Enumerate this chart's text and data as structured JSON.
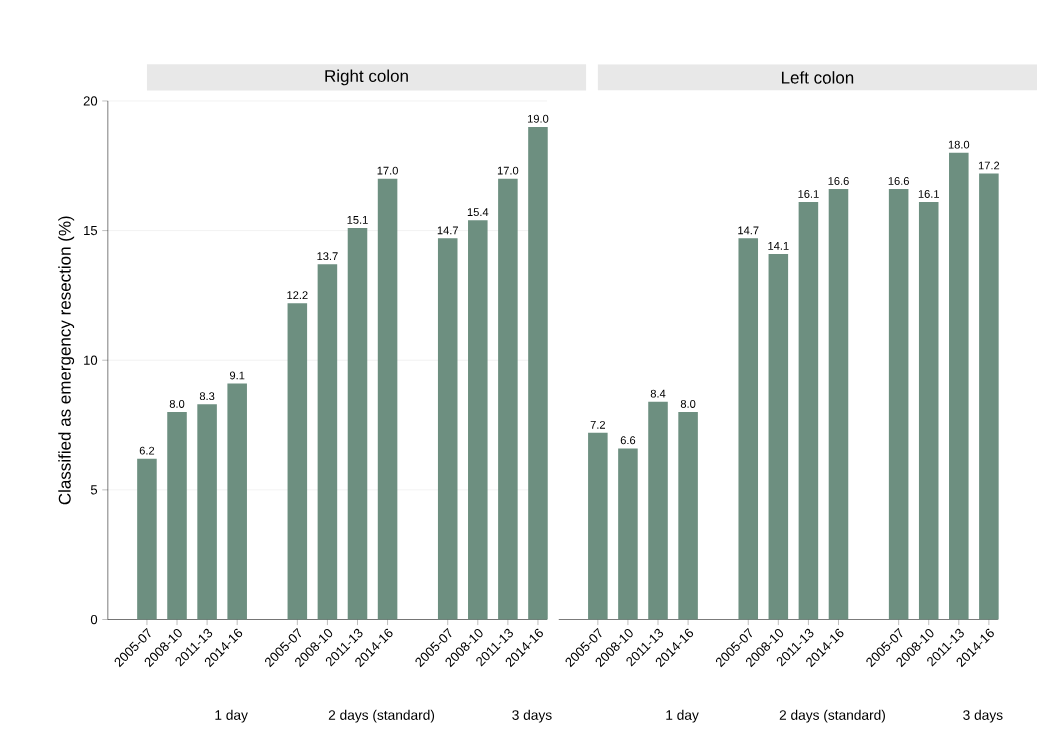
{
  "chart_data": [
    {
      "type": "bar",
      "title": "Right colon",
      "ylabel": "Classified as emergency resection (%)",
      "categories": [
        "2005-07",
        "2008-10",
        "2011-13",
        "2014-16",
        null,
        "2005-07",
        "2008-10",
        "2011-13",
        "2014-16",
        null,
        "2005-07",
        "2008-10",
        "2011-13",
        "2014-16"
      ],
      "values": [
        6.2,
        8.0,
        8.3,
        9.1,
        null,
        12.2,
        13.7,
        15.1,
        17.0,
        null,
        14.7,
        15.4,
        17.0,
        19.0
      ],
      "value_labels": [
        "6.2",
        "8.0",
        "8.3",
        "9.1",
        null,
        "12.2",
        "13.7",
        "15.1",
        "17.0",
        null,
        "14.7",
        "15.4",
        "17.0",
        "19.0"
      ],
      "color": "#6d8f80",
      "ylim": [
        0,
        20
      ],
      "yticks": [
        0,
        5,
        10,
        15,
        20
      ],
      "grid": "y",
      "annotations": [
        "1 day",
        "2 days (standard)",
        "3 days"
      ]
    },
    {
      "type": "bar",
      "title": "Left colon",
      "categories": [
        "2005-07",
        "2008-10",
        "2011-13",
        "2014-16",
        null,
        "2005-07",
        "2008-10",
        "2011-13",
        "2014-16",
        null,
        "2005-07",
        "2008-10",
        "2011-13",
        "2014-16"
      ],
      "values": [
        7.2,
        6.6,
        8.4,
        8.0,
        null,
        14.7,
        14.1,
        16.1,
        16.6,
        null,
        16.6,
        16.1,
        18.0,
        17.2
      ],
      "value_labels": [
        "7.2",
        "6.6",
        "8.4",
        "8.0",
        null,
        "14.7",
        "14.1",
        "16.1",
        "16.6",
        null,
        "16.6",
        "16.1",
        "18.0",
        "17.2"
      ],
      "color": "#6d8f80",
      "ylim": [
        0,
        20
      ],
      "yticks": [
        0,
        5,
        10,
        15,
        20
      ],
      "grid": "y",
      "tick_labels": "x",
      "annotations": [
        "1 day",
        "2 days (standard)",
        "3 days"
      ]
    }
  ]
}
